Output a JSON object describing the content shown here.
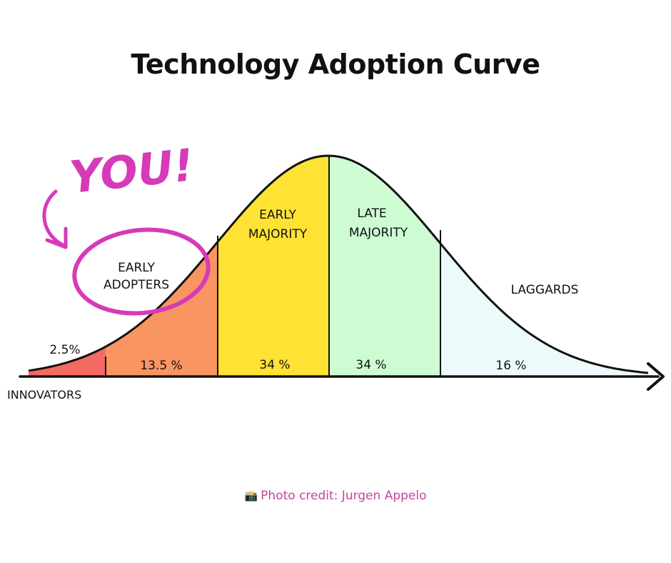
{
  "title": "Technology Adoption Curve",
  "callout": {
    "text": "YOU!",
    "color": "#d63ab8"
  },
  "segments": [
    {
      "name": "INNOVATORS",
      "percent": "2.5%",
      "share": 2.5,
      "color": "#f26a63"
    },
    {
      "name_line1": "EARLY",
      "name_line2": "ADOPTERS",
      "percent": "13.5 %",
      "share": 13.5,
      "color": "#f99561"
    },
    {
      "name_line1": "EARLY",
      "name_line2": "MAJORITY",
      "percent": "34 %",
      "share": 34,
      "color": "#fee234"
    },
    {
      "name_line1": "LATE",
      "name_line2": "MAJORITY",
      "percent": "34 %",
      "share": 34,
      "color": "#cdfcd2"
    },
    {
      "name": "LAGGARDS",
      "percent": "16 %",
      "share": 16,
      "color": "#edfafb"
    }
  ],
  "credit": {
    "icon": "camera-icon",
    "text": "Photo credit: Jurgen Appelo",
    "color": "#c8429f"
  }
}
